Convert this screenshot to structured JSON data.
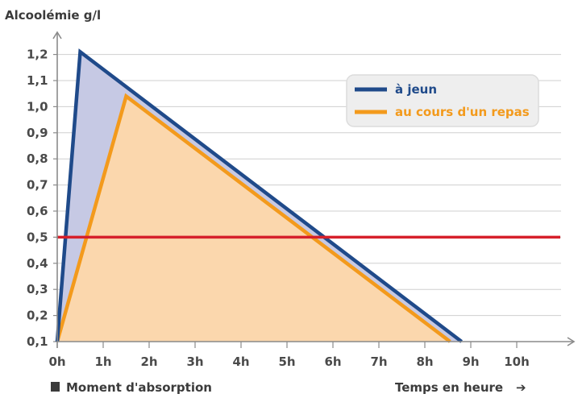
{
  "chart_data": {
    "type": "area",
    "ylabel": "Alcoolémie g/l",
    "xlabel": "Temps en heure",
    "xlabel_arrow": "➔",
    "origin_note": "Moment d'absorption",
    "x_ticks": [
      "0h",
      "1h",
      "2h",
      "3h",
      "4h",
      "5h",
      "6h",
      "7h",
      "8h",
      "9h",
      "10h"
    ],
    "y_ticks": [
      "0,1",
      "0,2",
      "0,3",
      "0,4",
      "0,5",
      "0,6",
      "0,7",
      "0,8",
      "0,9",
      "1,0",
      "1,1",
      "1,2"
    ],
    "xlim": [
      0,
      11.1
    ],
    "ylim": [
      0.1,
      1.3
    ],
    "grid": true,
    "legend_position": "top-right",
    "series": [
      {
        "name": "à jeun",
        "color": "#1f4a8a",
        "fill": "#c6c9e4",
        "points": [
          [
            0,
            0.1
          ],
          [
            0.5,
            1.21
          ],
          [
            8.8,
            0.1
          ]
        ]
      },
      {
        "name": "au cours d'un repas",
        "color": "#f39a1c",
        "fill": "#fbd7ad",
        "points": [
          [
            0,
            0.1
          ],
          [
            1.5,
            1.04
          ],
          [
            8.55,
            0.1
          ]
        ]
      }
    ],
    "reference_line": {
      "y": 0.5,
      "color": "#d6202b"
    }
  }
}
